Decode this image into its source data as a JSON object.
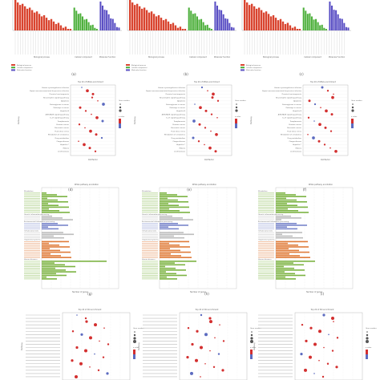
{
  "figure": {
    "panel_labels": [
      "(a)",
      "(b)",
      "(c)",
      "(d)",
      "(e)",
      "(f)",
      "(g)",
      "(h)",
      "(i)"
    ],
    "colors": {
      "bp": "#d9442f",
      "cc": "#4caf3a",
      "mf": "#5a4fc4",
      "metabolism": "#7cb342",
      "environmental": "#7986cb",
      "cellular": "#e07b39",
      "organismal": "#e07b39",
      "diseases": "#7cb342",
      "dot_high": "#d32f2f",
      "dot_low": "#5c6bc0"
    },
    "go_legend": [
      "Biological process",
      "Cellular component",
      "Molecular function"
    ],
    "kegg_top_title": "Top 20 of KEGG enrichment",
    "kegg_class_title": "KEGG pathway annotation",
    "do_top_title": "Top 20 of DO enrichment",
    "rich_factor_label": "Richfactor",
    "pathway_axis_label": "Pathway",
    "number_of_genes_label": "Number of genes",
    "gene_number_label": "Gene number",
    "q_value_label": "q value",
    "kegg_class_labels": [
      "Metabolism",
      "Genetic information processing",
      "Environmental information processing",
      "Cellular processes",
      "Organismal systems",
      "Human diseases"
    ],
    "kegg_a_terms": [
      "Human cytomegalovirus infection",
      "Kaposi sarcoma-associated herpesvirus infection",
      "Chemical carcinogenesis",
      "Neurotrophin signaling pathway",
      "Apoptosis",
      "Proteoglycans in cancer",
      "Pathways in cancer",
      "Hepatitis B",
      "AGE-RAGE signaling pathway",
      "IL-17 signaling pathway",
      "Toxoplasmosis",
      "Prostate cancer",
      "Pancreatic cancer",
      "Fluid shear stress",
      "Metabolism of xenobiotics",
      "Drug metabolism",
      "Chagas disease",
      "Hepatitis C",
      "Malaria",
      "Leishmaniasis"
    ]
  }
}
